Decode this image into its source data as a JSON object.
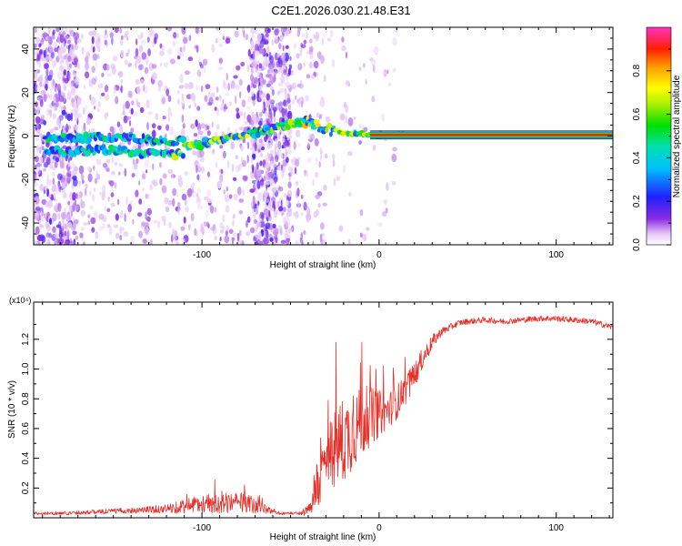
{
  "title": "C2E1.2026.030.21.48.E31",
  "colors": {
    "snr_line": "#e8302a",
    "background": "#ffffff",
    "axis": "#000000"
  },
  "chart_data": [
    {
      "type": "heatmap",
      "title": "C2E1.2026.030.21.48.E31",
      "xlabel": "Height of straight line (km)",
      "ylabel": "Frequency (Hz)",
      "xlim": [
        -195,
        132
      ],
      "ylim": [
        -50,
        50
      ],
      "xticks": [
        -100,
        0,
        100
      ],
      "xtick_labels": [
        "-100",
        "0",
        "100"
      ],
      "yticks": [
        -40,
        -20,
        0,
        20,
        40
      ],
      "ytick_labels": [
        "-40",
        "-20",
        "0",
        "20",
        "40"
      ],
      "colorbar": {
        "label": "Normalized spectral amplitude",
        "range": [
          0,
          1
        ],
        "ticks": [
          0.0,
          0.2,
          0.4,
          0.6,
          0.8
        ],
        "tick_labels": [
          "0.0",
          "0.2",
          "0.4",
          "0.6",
          "0.8"
        ]
      },
      "tone_track": [
        {
          "x": -180,
          "y": -3.5
        },
        {
          "x": -150,
          "y": -3
        },
        {
          "x": -120,
          "y": -5
        },
        {
          "x": -100,
          "y": -3.5
        },
        {
          "x": -85,
          "y": -1
        },
        {
          "x": -70,
          "y": 1.5
        },
        {
          "x": -40,
          "y": 7
        },
        {
          "x": -30,
          "y": 3
        },
        {
          "x": -15,
          "y": 1
        },
        {
          "x": 0,
          "y": 0.5
        },
        {
          "x": 130,
          "y": 0.5
        }
      ]
    },
    {
      "type": "line",
      "xlabel": "Height of straight line (km)",
      "ylabel": "SNR (10 * v/v)",
      "y_multiplier": "(x10⁴)",
      "xlim": [
        -195,
        132
      ],
      "ylim": [
        0,
        1.45
      ],
      "xticks": [
        -100,
        0,
        100
      ],
      "xtick_labels": [
        "-100",
        "0",
        "100"
      ],
      "yticks": [
        0.2,
        0.4,
        0.6,
        0.8,
        1.0,
        1.2
      ],
      "ytick_labels": [
        "0.2",
        "0.4",
        "0.6",
        "0.8",
        "1.0",
        "1.2"
      ],
      "series": [
        {
          "name": "SNR",
          "x": [
            -195,
            -180,
            -160,
            -140,
            -120,
            -110,
            -100,
            -85,
            -75,
            -65,
            -55,
            -45,
            -40,
            -35,
            -30,
            -25,
            -20,
            -15,
            -10,
            -5,
            0,
            5,
            10,
            15,
            20,
            25,
            30,
            35,
            40,
            45,
            50,
            60,
            70,
            80,
            90,
            100,
            110,
            120,
            132
          ],
          "values": [
            0.03,
            0.03,
            0.04,
            0.05,
            0.06,
            0.08,
            0.09,
            0.1,
            0.1,
            0.06,
            0.03,
            0.03,
            0.05,
            0.18,
            0.36,
            0.48,
            0.52,
            0.58,
            0.64,
            0.68,
            0.7,
            0.72,
            0.78,
            0.86,
            0.96,
            1.08,
            1.18,
            1.25,
            1.28,
            1.31,
            1.32,
            1.33,
            1.32,
            1.33,
            1.34,
            1.34,
            1.33,
            1.32,
            1.28
          ],
          "noise": [
            0.01,
            0.012,
            0.015,
            0.02,
            0.03,
            0.05,
            0.06,
            0.07,
            0.07,
            0.03,
            0.01,
            0.01,
            0.04,
            0.14,
            0.22,
            0.28,
            0.3,
            0.26,
            0.24,
            0.2,
            0.16,
            0.12,
            0.12,
            0.1,
            0.09,
            0.07,
            0.05,
            0.03,
            0.025,
            0.02,
            0.02,
            0.02,
            0.02,
            0.02,
            0.02,
            0.02,
            0.02,
            0.02,
            0.02
          ]
        }
      ]
    }
  ]
}
